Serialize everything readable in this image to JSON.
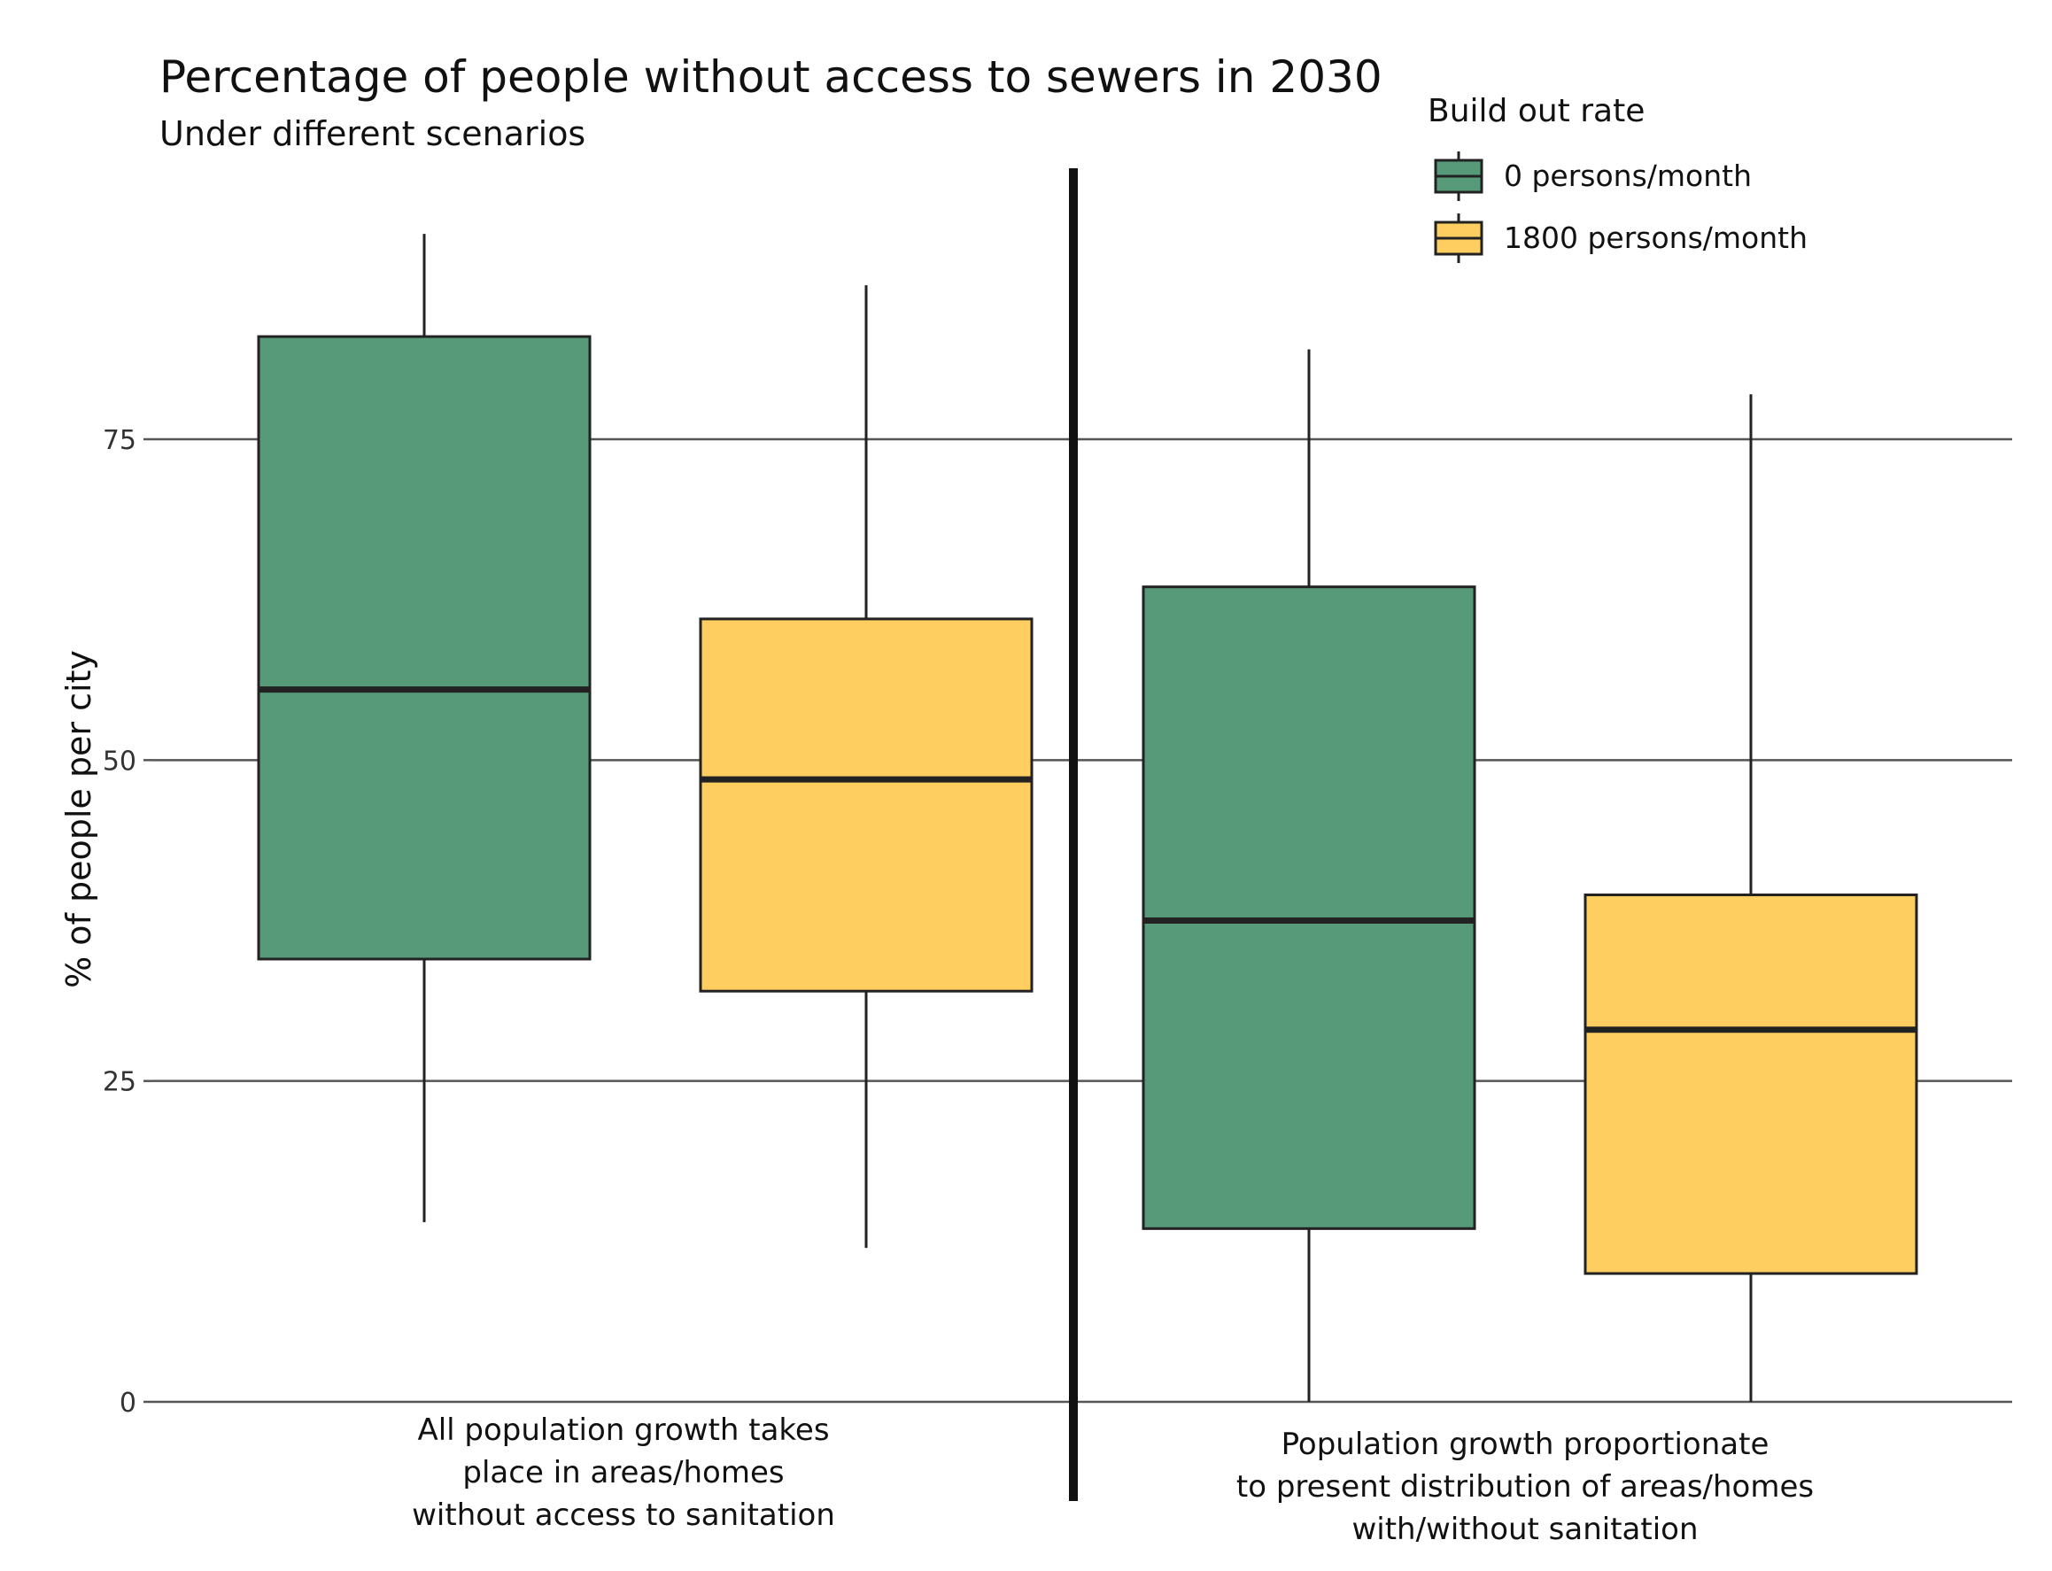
{
  "chart_data": {
    "type": "boxplot",
    "title": "Percentage of people without access to sewers in 2030",
    "subtitle": "Under different scenarios",
    "ylabel": "% of people per city",
    "xlabel": "",
    "ylim": [
      0,
      100
    ],
    "yticks": [
      0,
      25,
      50,
      75
    ],
    "grid": true,
    "legend": {
      "title": "Build out rate",
      "position": "top-right",
      "entries": [
        {
          "name": "0 persons/month",
          "color": "#579a7a"
        },
        {
          "name": "1800 persons/month",
          "color": "#fecf60"
        }
      ]
    },
    "groups": [
      {
        "label_lines": [
          "All population growth takes",
          "place in areas/homes",
          "without access to sanitation"
        ],
        "boxes": [
          {
            "series": "0 persons/month",
            "whisker_low": 14,
            "q1": 34.5,
            "median": 55.5,
            "q3": 83,
            "whisker_high": 91
          },
          {
            "series": "1800 persons/month",
            "whisker_low": 12,
            "q1": 32,
            "median": 48.5,
            "q3": 61,
            "whisker_high": 87
          }
        ]
      },
      {
        "label_lines": [
          "Population growth proportionate",
          "to present distribution of areas/homes",
          "with/without sanitation"
        ],
        "boxes": [
          {
            "series": "0 persons/month",
            "whisker_low": 0,
            "q1": 13.5,
            "median": 37.5,
            "q3": 63.5,
            "whisker_high": 82
          },
          {
            "series": "1800 persons/month",
            "whisker_low": 0,
            "q1": 10,
            "median": 29,
            "q3": 39.5,
            "whisker_high": 78.5
          }
        ]
      }
    ],
    "colors": {
      "series_0": "#579a7a",
      "series_1": "#fecf60",
      "outline": "#222222",
      "grid": "#555555",
      "divider": "#111111"
    }
  }
}
